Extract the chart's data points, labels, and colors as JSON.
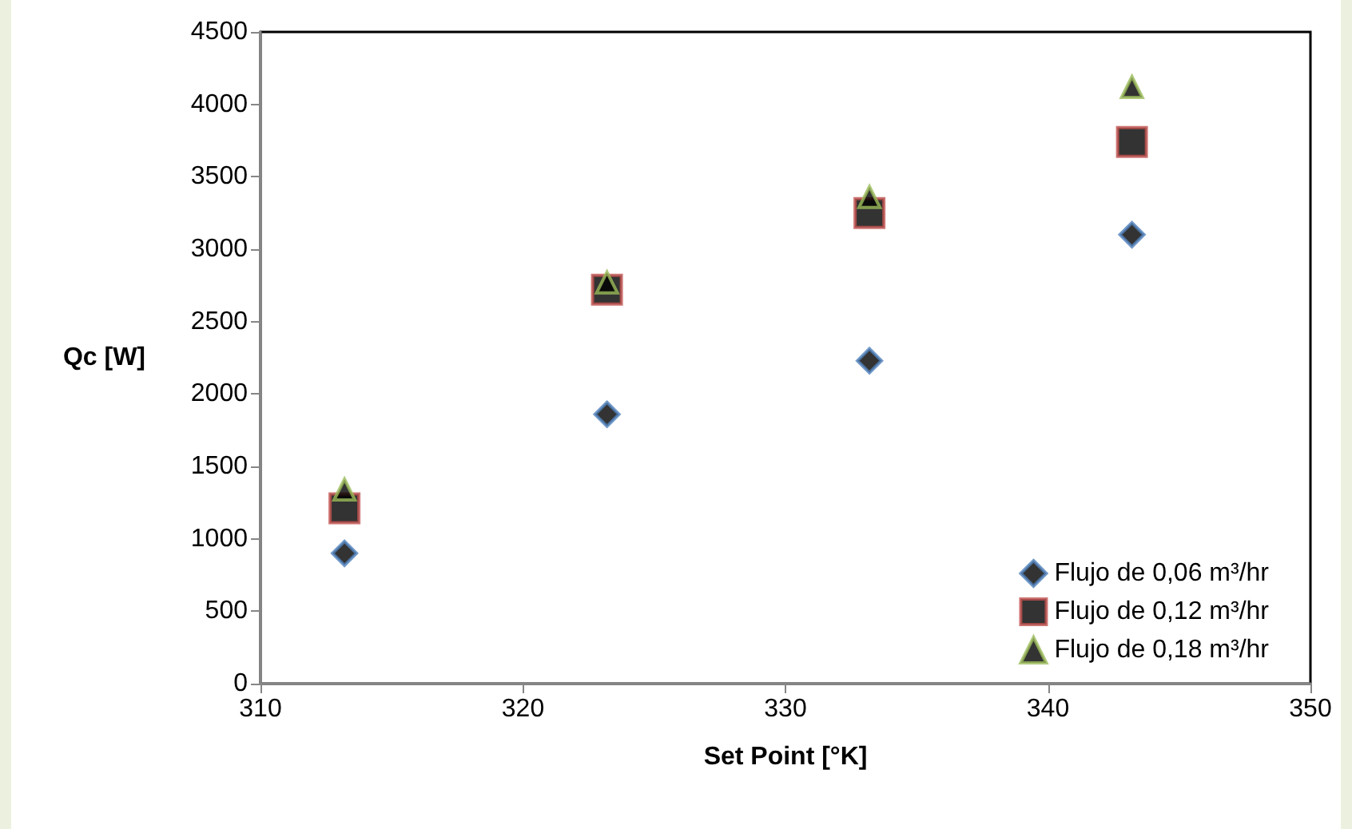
{
  "chart_data": {
    "type": "scatter",
    "xlabel": "Set Point [°K]",
    "ylabel": "Qc [W]",
    "xlim": [
      310,
      350
    ],
    "xticks": [
      310,
      320,
      330,
      340,
      350
    ],
    "ylim": [
      0,
      4500
    ],
    "yticks": [
      0,
      500,
      1000,
      1500,
      2000,
      2500,
      3000,
      3500,
      4000,
      4500
    ],
    "grid": false,
    "legend": "bottom right",
    "series": [
      {
        "name": "Flujo de 0,06 m³/hr",
        "color": "#4f81bd",
        "marker": "diamond",
        "x": [
          313.2,
          323.2,
          333.2,
          343.2
        ],
        "values": [
          900,
          1860,
          2230,
          3100
        ]
      },
      {
        "name": "Flujo de 0,12 m³/hr",
        "color": "#c0504d",
        "marker": "square",
        "x": [
          313.2,
          323.2,
          333.2,
          343.2
        ],
        "values": [
          1210,
          2720,
          3250,
          3740
        ]
      },
      {
        "name": "Flujo de 0,18 m³/hr",
        "color": "#9bbb59",
        "marker": "triangle",
        "x": [
          313.2,
          323.2,
          333.2,
          343.2
        ],
        "values": [
          1340,
          2770,
          3360,
          4120
        ]
      }
    ]
  }
}
